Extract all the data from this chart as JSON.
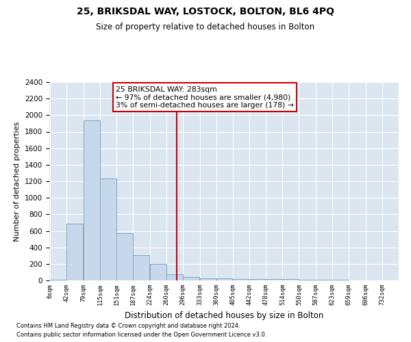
{
  "title": "25, BRIKSDAL WAY, LOSTOCK, BOLTON, BL6 4PQ",
  "subtitle": "Size of property relative to detached houses in Bolton",
  "xlabel": "Distribution of detached houses by size in Bolton",
  "ylabel": "Number of detached properties",
  "bar_color": "#c8d8eb",
  "bar_edge_color": "#7aaac8",
  "background_color": "#dce6f0",
  "grid_color": "#ffffff",
  "annotation_box_color": "#cc0000",
  "vline_color": "#cc0000",
  "bins": [
    6,
    42,
    79,
    115,
    151,
    187,
    224,
    260,
    296,
    333,
    369,
    405,
    442,
    478,
    514,
    550,
    587,
    623,
    659,
    696,
    732
  ],
  "counts": [
    10,
    690,
    1940,
    1230,
    570,
    305,
    200,
    75,
    40,
    28,
    22,
    20,
    18,
    16,
    14,
    8,
    6,
    5,
    4,
    3
  ],
  "property_size": 283,
  "annotation_lines": [
    "25 BRIKSDAL WAY: 283sqm",
    "← 97% of detached houses are smaller (4,980)",
    "3% of semi-detached houses are larger (178) →"
  ],
  "ylim": [
    0,
    2400
  ],
  "yticks": [
    0,
    200,
    400,
    600,
    800,
    1000,
    1200,
    1400,
    1600,
    1800,
    2000,
    2200,
    2400
  ],
  "tick_labels": [
    "6sqm",
    "42sqm",
    "79sqm",
    "115sqm",
    "151sqm",
    "187sqm",
    "224sqm",
    "260sqm",
    "296sqm",
    "333sqm",
    "369sqm",
    "405sqm",
    "442sqm",
    "478sqm",
    "514sqm",
    "550sqm",
    "587sqm",
    "623sqm",
    "659sqm",
    "696sqm",
    "732sqm"
  ],
  "footer1": "Contains HM Land Registry data © Crown copyright and database right 2024.",
  "footer2": "Contains public sector information licensed under the Open Government Licence v3.0."
}
